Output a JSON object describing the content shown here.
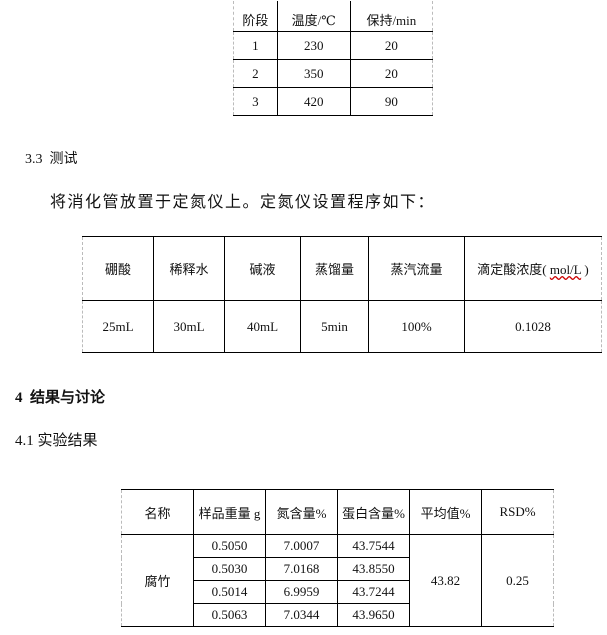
{
  "table1": {
    "headers": [
      "阶段",
      "温度/℃",
      "保持/min"
    ],
    "rows": [
      [
        "1",
        "230",
        "20"
      ],
      [
        "2",
        "350",
        "20"
      ],
      [
        "3",
        "420",
        "90"
      ]
    ]
  },
  "section33": {
    "number": "3.3",
    "title": "测试"
  },
  "para1": "将消化管放置于定氮仪上。定氮仪设置程序如下：",
  "table2": {
    "headers": [
      "硼酸",
      "稀释水",
      "碱液",
      "蒸馏量",
      "蒸汽流量"
    ],
    "last_header_pre": "滴定酸浓度(",
    "last_header_unit": "mol/L",
    "last_header_post": ")",
    "values": [
      "25mL",
      "30mL",
      "40mL",
      "5min",
      "100%",
      "0.1028"
    ]
  },
  "section4": {
    "number": "4",
    "title": "结果与讨论"
  },
  "section41": {
    "number": "4.1",
    "title": "实验结果"
  },
  "table3": {
    "headers": [
      "名称",
      "样品重量 g",
      "氮含量%",
      "蛋白含量%",
      "平均值%",
      "RSD%"
    ],
    "name": "腐竹",
    "rows": [
      [
        "0.5050",
        "7.0007",
        "43.7544"
      ],
      [
        "0.5030",
        "7.0168",
        "43.8550"
      ],
      [
        "0.5014",
        "6.9959",
        "43.7244"
      ],
      [
        "0.5063",
        "7.0344",
        "43.9650"
      ]
    ],
    "average": "43.82",
    "rsd": "0.25"
  }
}
